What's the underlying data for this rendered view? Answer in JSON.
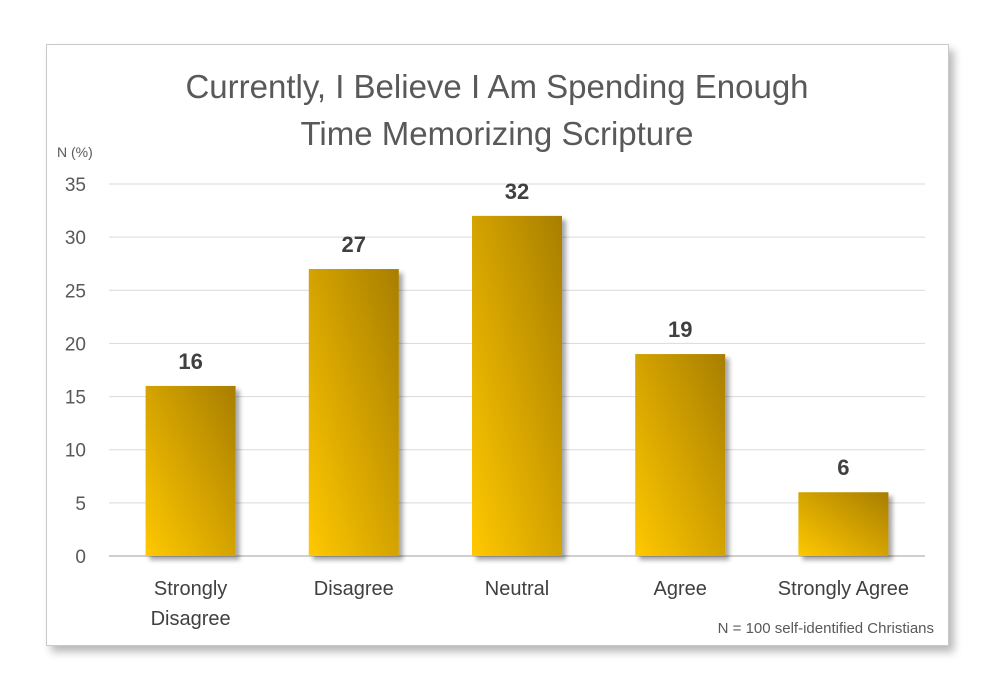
{
  "chart_data": {
    "type": "bar",
    "title_lines": [
      "Currently, I Believe I Am Spending Enough",
      "Time Memorizing Scripture"
    ],
    "ylabel": "N (%)",
    "xlabel": "",
    "categories": [
      [
        "Strongly",
        "Disagree"
      ],
      [
        "Disagree"
      ],
      [
        "Neutral"
      ],
      [
        "Agree"
      ],
      [
        "Strongly Agree"
      ]
    ],
    "values": [
      16,
      27,
      32,
      19,
      6
    ],
    "ylim": [
      0,
      35
    ],
    "yticks": [
      0,
      5,
      10,
      15,
      20,
      25,
      30,
      35
    ],
    "grid": true,
    "legend": "none",
    "bar_color_light": "#ffc800",
    "bar_color_dark": "#a87e00",
    "footnote": "N = 100 self-identified Christians"
  }
}
